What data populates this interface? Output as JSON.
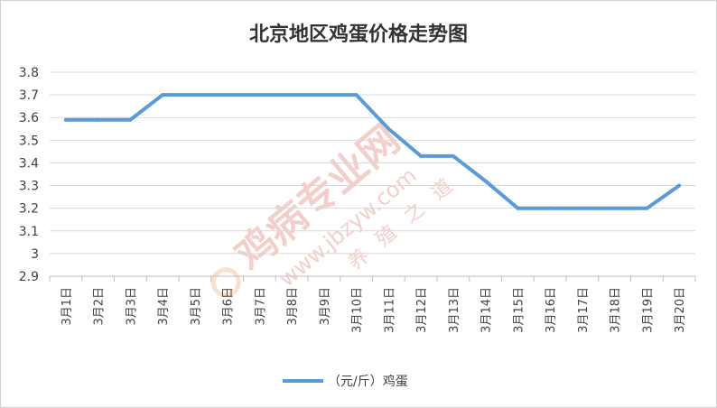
{
  "chart_data": {
    "type": "line",
    "title": "北京地区鸡蛋价格走势图",
    "xlabel": "",
    "ylabel": "",
    "categories": [
      "3月1日",
      "3月2日",
      "3月3日",
      "3月4日",
      "3月5日",
      "3月6日",
      "3月7日",
      "3月8日",
      "3月9日",
      "3月10日",
      "3月11日",
      "3月12日",
      "3月13日",
      "3月14日",
      "3月15日",
      "3月16日",
      "3月17日",
      "3月18日",
      "3月19日",
      "3月20日"
    ],
    "series": [
      {
        "name": "（元/斤）鸡蛋",
        "values": [
          3.59,
          3.59,
          3.59,
          3.7,
          3.7,
          3.7,
          3.7,
          3.7,
          3.7,
          3.7,
          3.55,
          3.43,
          3.43,
          3.32,
          3.2,
          3.2,
          3.2,
          3.2,
          3.2,
          3.3
        ],
        "color": "#5b9bd5"
      }
    ],
    "ylim": [
      2.9,
      3.8
    ],
    "yticks": [
      "2.9",
      "3",
      "3.1",
      "3.2",
      "3.3",
      "3.4",
      "3.5",
      "3.6",
      "3.7",
      "3.8"
    ],
    "grid": true,
    "legend": "bottom"
  },
  "watermark": {
    "brand": "鸡病专业网",
    "url": "www.jbzyw.com",
    "slogan": "养殖之道",
    "color": "#e8a9a2"
  }
}
